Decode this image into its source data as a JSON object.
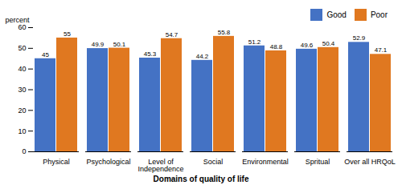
{
  "chart_data": {
    "type": "bar",
    "xlabel": "Domains of quality of life",
    "ylabel": "percent",
    "categories": [
      "Physical",
      "Psychological",
      "Level of\nIndependence",
      "Social",
      "Environmental",
      "Spritual",
      "Over all HRQoL"
    ],
    "series": [
      {
        "name": "Good",
        "color": "#4472C4",
        "values": [
          45,
          49.9,
          45.3,
          44.2,
          51.2,
          49.6,
          52.9
        ]
      },
      {
        "name": "Poor",
        "color": "#E07820",
        "values": [
          55,
          50.1,
          54.7,
          55.8,
          48.8,
          50.4,
          47.1
        ]
      }
    ],
    "ylim": [
      0,
      60
    ],
    "yticks": [
      0,
      10,
      20,
      30,
      40,
      50,
      60
    ],
    "data_labels": true,
    "legend": "right",
    "grid": false
  }
}
